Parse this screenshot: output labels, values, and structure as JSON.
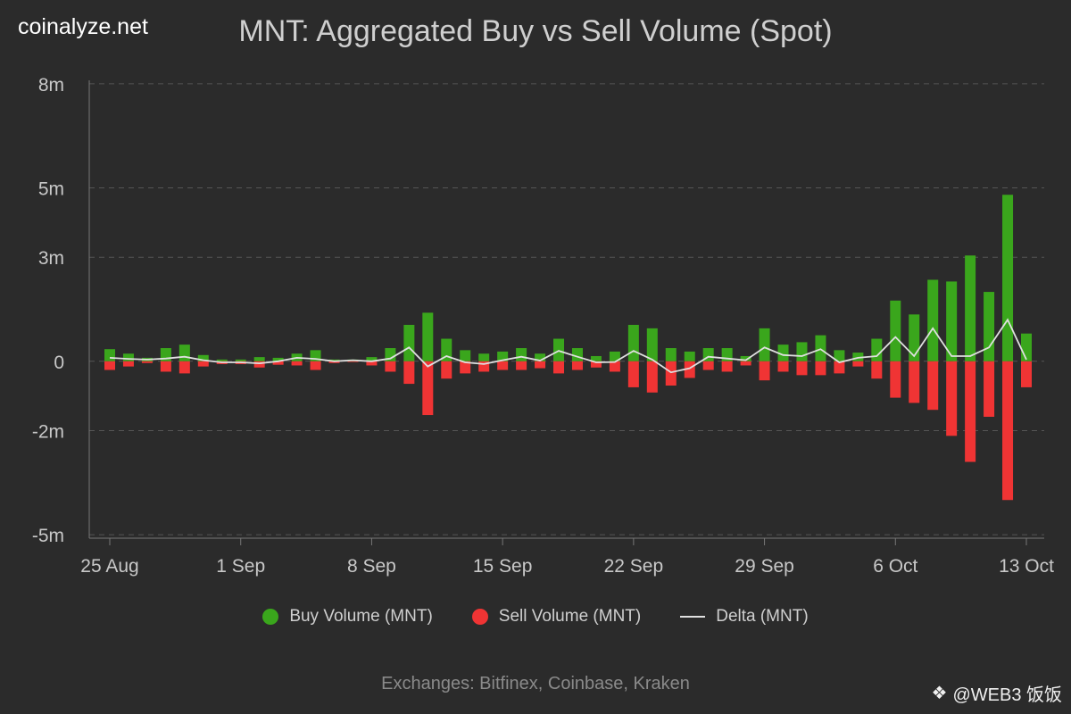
{
  "brand": "coinalyze.net",
  "footer": "Exchanges: Bitfinex, Coinbase, Kraken",
  "watermark": {
    "icon": "diamond-logo-icon",
    "text": "@WEB3 饭饭"
  },
  "colors": {
    "buy": "#3aa61c",
    "sell": "#f03434",
    "delta": "#e0e0e0",
    "grid": "#555555"
  },
  "chart_data": {
    "type": "bar",
    "title": "MNT: Aggregated Buy vs Sell Volume (Spot)",
    "xlabel": "",
    "ylabel": "",
    "ylim": [
      -5.1,
      8.1
    ],
    "yticks": [
      {
        "value": 8,
        "label": "8m"
      },
      {
        "value": 5,
        "label": "5m"
      },
      {
        "value": 3,
        "label": "3m"
      },
      {
        "value": 0,
        "label": "0"
      },
      {
        "value": -2,
        "label": "-2m"
      },
      {
        "value": -5,
        "label": "-5m"
      }
    ],
    "xticks": [
      {
        "index": 0,
        "label": "25 Aug"
      },
      {
        "index": 7,
        "label": "1 Sep"
      },
      {
        "index": 14,
        "label": "8 Sep"
      },
      {
        "index": 21,
        "label": "15 Sep"
      },
      {
        "index": 28,
        "label": "22 Sep"
      },
      {
        "index": 35,
        "label": "29 Sep"
      },
      {
        "index": 42,
        "label": "6 Oct"
      },
      {
        "index": 49,
        "label": "13 Oct"
      }
    ],
    "legend": [
      "Buy Volume (MNT)",
      "Sell Volume (MNT)",
      "Delta (MNT)"
    ],
    "series": [
      {
        "name": "Buy Volume (MNT)",
        "values": [
          0.35,
          0.22,
          0.1,
          0.38,
          0.48,
          0.18,
          0.05,
          0.05,
          0.12,
          0.1,
          0.22,
          0.32,
          0.05,
          0.05,
          0.12,
          0.38,
          1.05,
          1.4,
          0.65,
          0.32,
          0.22,
          0.28,
          0.38,
          0.22,
          0.65,
          0.38,
          0.15,
          0.28,
          1.05,
          0.95,
          0.38,
          0.28,
          0.38,
          0.38,
          0.15,
          0.95,
          0.48,
          0.55,
          0.75,
          0.32,
          0.25,
          0.65,
          1.75,
          1.35,
          2.35,
          2.3,
          3.05,
          2.0,
          4.8,
          0.8
        ]
      },
      {
        "name": "Sell Volume (MNT)",
        "values": [
          -0.25,
          -0.15,
          -0.05,
          -0.3,
          -0.35,
          -0.15,
          -0.08,
          -0.08,
          -0.18,
          -0.1,
          -0.12,
          -0.25,
          -0.05,
          -0.02,
          -0.12,
          -0.3,
          -0.65,
          -1.55,
          -0.5,
          -0.35,
          -0.3,
          -0.25,
          -0.25,
          -0.2,
          -0.35,
          -0.25,
          -0.18,
          -0.3,
          -0.75,
          -0.9,
          -0.7,
          -0.48,
          -0.25,
          -0.3,
          -0.12,
          -0.55,
          -0.3,
          -0.4,
          -0.4,
          -0.35,
          -0.15,
          -0.5,
          -1.05,
          -1.2,
          -1.4,
          -2.15,
          -2.9,
          -1.6,
          -4.0,
          -0.75
        ]
      },
      {
        "name": "Delta (MNT)",
        "values": [
          0.1,
          0.07,
          0.05,
          0.08,
          0.13,
          0.03,
          -0.03,
          -0.03,
          -0.06,
          0.0,
          0.1,
          0.07,
          0.0,
          0.03,
          0.0,
          0.08,
          0.4,
          -0.15,
          0.15,
          -0.03,
          -0.08,
          0.03,
          0.13,
          0.02,
          0.3,
          0.13,
          -0.03,
          -0.02,
          0.3,
          0.05,
          -0.32,
          -0.2,
          0.13,
          0.08,
          0.03,
          0.4,
          0.18,
          0.15,
          0.35,
          -0.03,
          0.1,
          0.15,
          0.7,
          0.15,
          0.95,
          0.15,
          0.15,
          0.4,
          1.2,
          0.05
        ]
      }
    ]
  }
}
